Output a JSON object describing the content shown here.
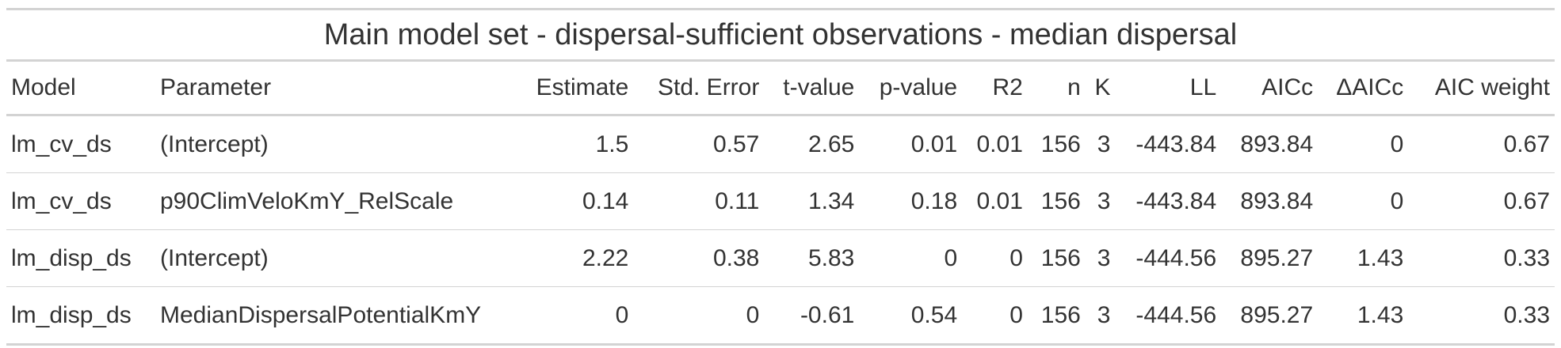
{
  "table": {
    "title": "Main model set - dispersal-sufficient observations - median dispersal",
    "columns": [
      "Model",
      "Parameter",
      "Estimate",
      "Std. Error",
      "t-value",
      "p-value",
      "R2",
      "n",
      "K",
      "LL",
      "AICc",
      "ΔAICc",
      "AIC weight"
    ],
    "rows": [
      [
        "lm_cv_ds",
        "(Intercept)",
        "1.5",
        "0.57",
        "2.65",
        "0.01",
        "0.01",
        "156",
        "3",
        "-443.84",
        "893.84",
        "0",
        "0.67"
      ],
      [
        "lm_cv_ds",
        "p90ClimVeloKmY_RelScale",
        "0.14",
        "0.11",
        "1.34",
        "0.18",
        "0.01",
        "156",
        "3",
        "-443.84",
        "893.84",
        "0",
        "0.67"
      ],
      [
        "lm_disp_ds",
        "(Intercept)",
        "2.22",
        "0.38",
        "5.83",
        "0",
        "0",
        "156",
        "3",
        "-444.56",
        "895.27",
        "1.43",
        "0.33"
      ],
      [
        "lm_disp_ds",
        "MedianDispersalPotentialKmY",
        "0",
        "0",
        "-0.61",
        "0.54",
        "0",
        "156",
        "3",
        "-444.56",
        "895.27",
        "1.43",
        "0.33"
      ]
    ]
  }
}
